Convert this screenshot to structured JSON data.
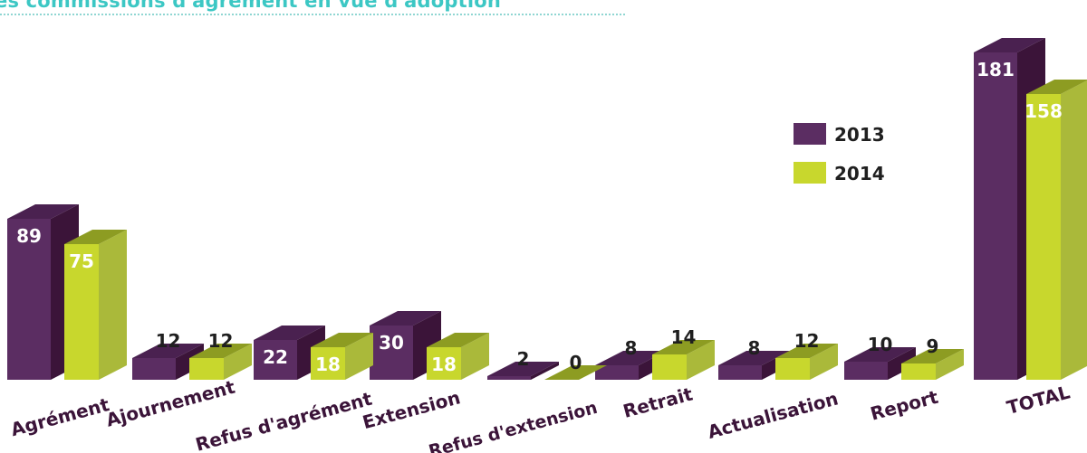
{
  "title": "es commissions d'agrément en vue d'adoption",
  "colors": {
    "title": "#3cc7c4",
    "title_rule": "#8fd6d2",
    "series_2013": {
      "front": "#5b2d62",
      "side": "#3b1439",
      "top": "#4a2150"
    },
    "series_2014": {
      "front": "#c8d72d",
      "side": "#aab93a",
      "top": "#8d9c22"
    },
    "value_label_on_bar": "#ffffff",
    "value_label_above_bar": "#1f1f1f",
    "category_label": "#3b1439"
  },
  "chart_data": {
    "type": "bar",
    "style": "3d-clustered",
    "categories": [
      "Agrément",
      "Ajournement",
      "Refus d'agrément",
      "Extension",
      "Refus d'extension",
      "Retrait",
      "Actualisation",
      "Report",
      "TOTAL"
    ],
    "series": [
      {
        "name": "2013",
        "values": [
          89,
          12,
          22,
          30,
          2,
          8,
          8,
          10,
          181
        ],
        "value_labels": [
          "89",
          "12",
          "22",
          "30",
          "2",
          "8",
          "8",
          "10",
          "181"
        ]
      },
      {
        "name": "2014",
        "values": [
          75,
          12,
          18,
          18,
          0,
          14,
          12,
          9,
          158
        ],
        "value_labels": [
          "75",
          "12",
          "18",
          "18",
          "0",
          "14",
          "12",
          "9",
          "158"
        ]
      }
    ],
    "legend": {
      "position": "right",
      "entries": [
        "2013",
        "2014"
      ]
    },
    "grid": false,
    "axes_visible": false,
    "ylim": [
      0,
      181
    ]
  }
}
